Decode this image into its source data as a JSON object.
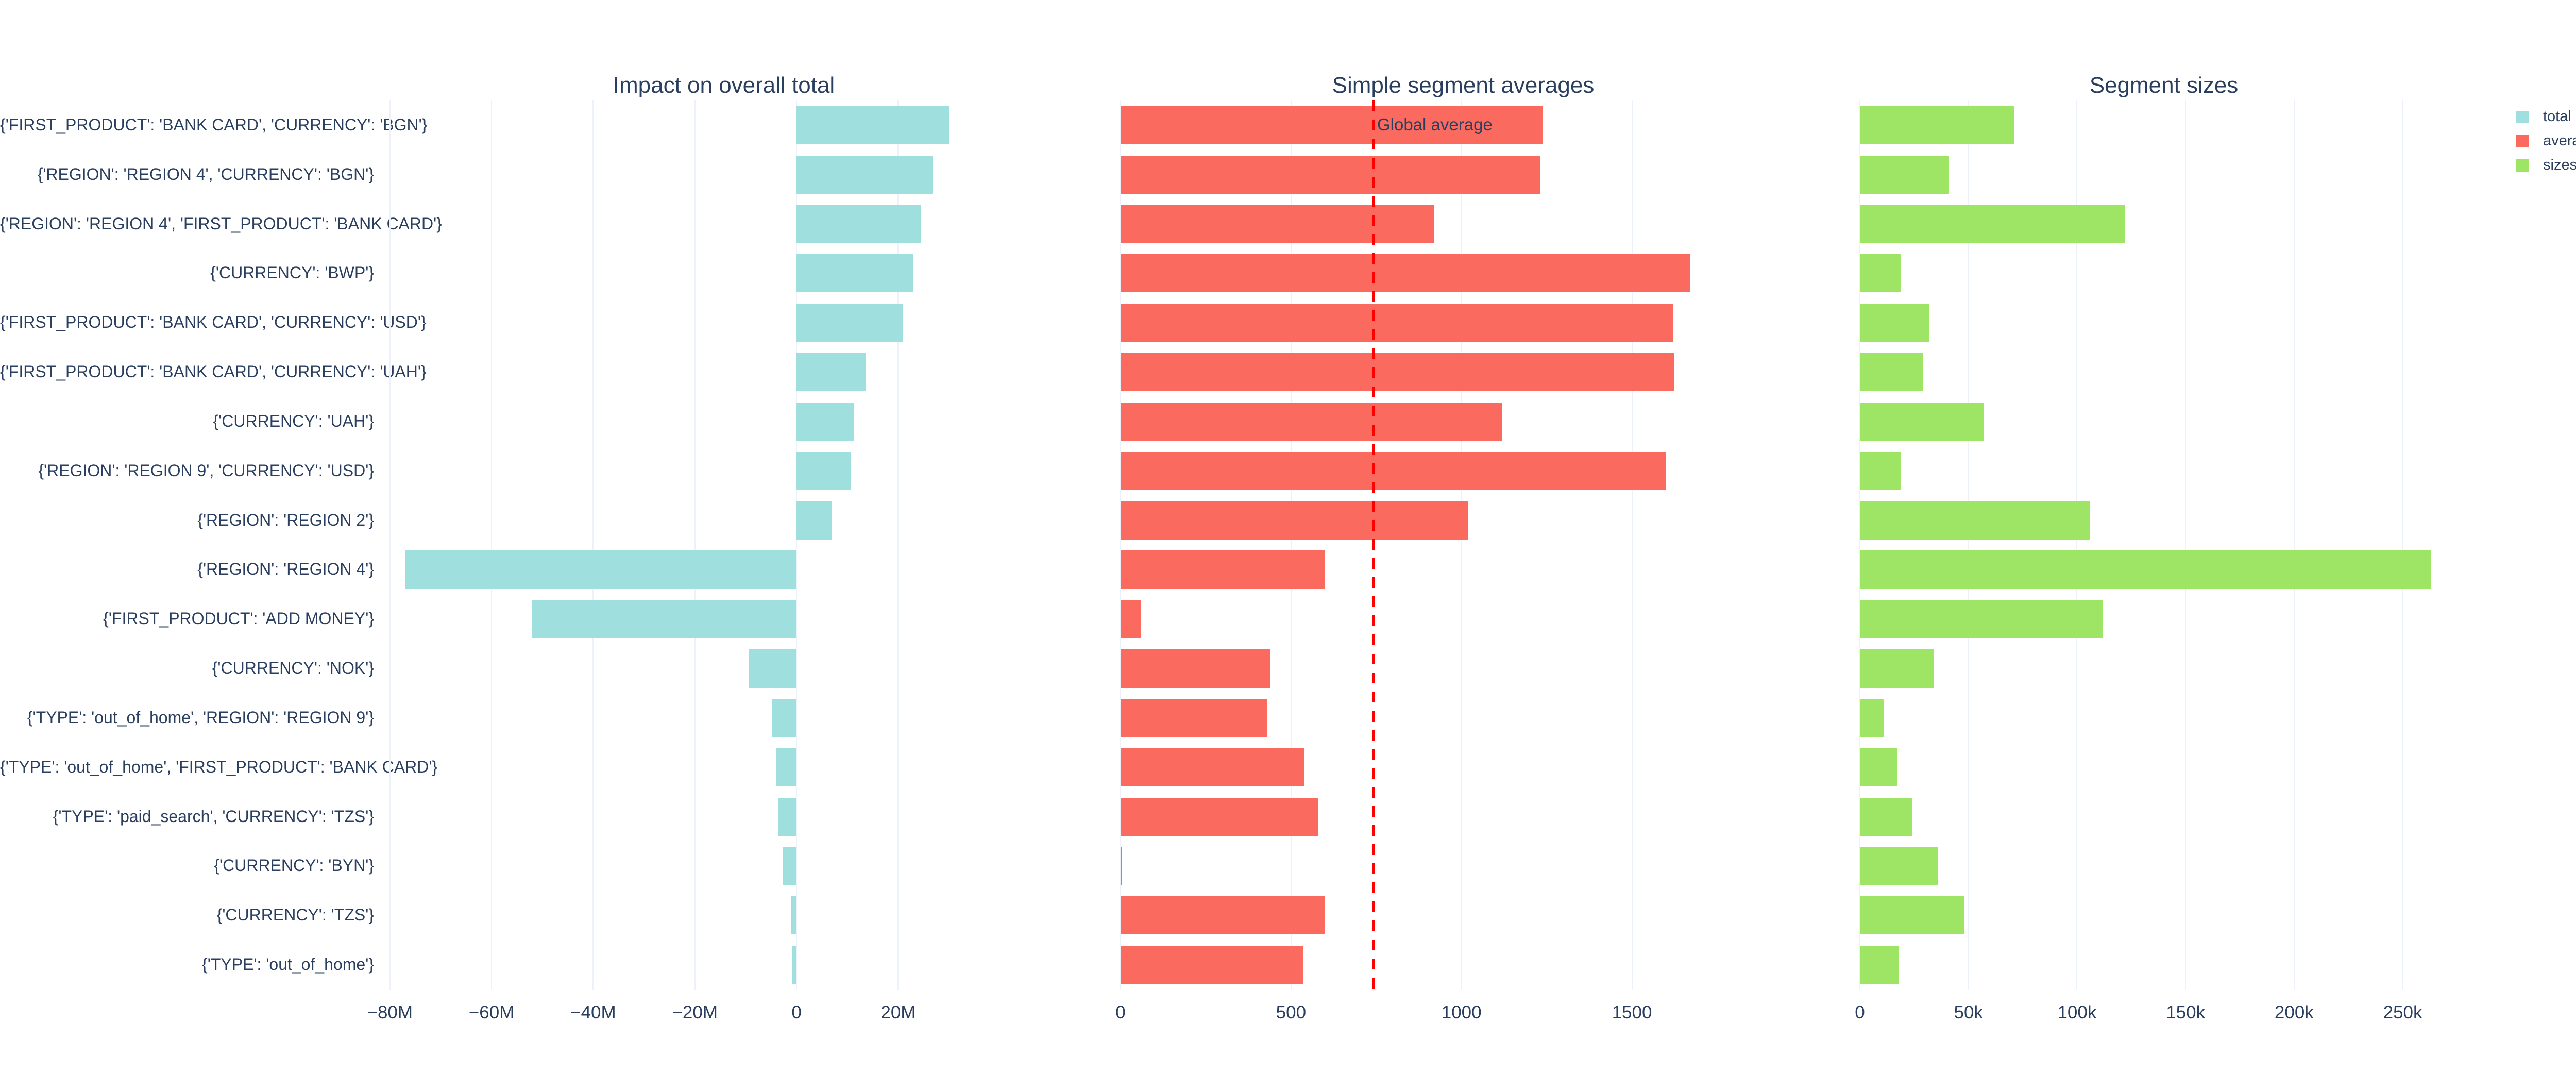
{
  "figure": {
    "background": "#ffffff",
    "text_color": "#2a3f5f",
    "grid_color": "#edf1f9"
  },
  "colors": {
    "total": "#9fe0de",
    "averages": "#fb6a5f",
    "sizes": "#9ee465",
    "reference_line": "#ff0000"
  },
  "legend": {
    "position": "top-right",
    "items": [
      {
        "label": "total",
        "color": "#9fe0de"
      },
      {
        "label": "averages",
        "color": "#fb6a5f"
      },
      {
        "label": "sizes",
        "color": "#9ee465"
      }
    ]
  },
  "categories": [
    "{'FIRST_PRODUCT': 'BANK CARD', 'CURRENCY': 'BGN'}",
    "{'REGION': 'REGION 4', 'CURRENCY': 'BGN'}",
    "{'REGION': 'REGION 4', 'FIRST_PRODUCT': 'BANK CARD'}",
    "{'CURRENCY': 'BWP'}",
    "{'FIRST_PRODUCT': 'BANK CARD', 'CURRENCY': 'USD'}",
    "{'FIRST_PRODUCT': 'BANK CARD', 'CURRENCY': 'UAH'}",
    "{'CURRENCY': 'UAH'}",
    "{'REGION': 'REGION 9', 'CURRENCY': 'USD'}",
    "{'REGION': 'REGION 2'}",
    "{'REGION': 'REGION 4'}",
    "{'FIRST_PRODUCT': 'ADD MONEY'}",
    "{'CURRENCY': 'NOK'}",
    "{'TYPE': 'out_of_home', 'REGION': 'REGION 9'}",
    "{'TYPE': 'out_of_home', 'FIRST_PRODUCT': 'BANK CARD'}",
    "{'TYPE': 'paid_search', 'CURRENCY': 'TZS'}",
    "{'CURRENCY': 'BYN'}",
    "{'CURRENCY': 'TZS'}",
    "{'TYPE': 'out_of_home'}"
  ],
  "chart_data": [
    {
      "type": "bar",
      "orientation": "horizontal",
      "title": "Impact on overall total",
      "series": "total",
      "color_key": "total",
      "grid": true,
      "categories": [
        "{'FIRST_PRODUCT': 'BANK CARD', 'CURRENCY': 'BGN'}",
        "{'REGION': 'REGION 4', 'CURRENCY': 'BGN'}",
        "{'REGION': 'REGION 4', 'FIRST_PRODUCT': 'BANK CARD'}",
        "{'CURRENCY': 'BWP'}",
        "{'FIRST_PRODUCT': 'BANK CARD', 'CURRENCY': 'USD'}",
        "{'FIRST_PRODUCT': 'BANK CARD', 'CURRENCY': 'UAH'}",
        "{'CURRENCY': 'UAH'}",
        "{'REGION': 'REGION 9', 'CURRENCY': 'USD'}",
        "{'REGION': 'REGION 2'}",
        "{'REGION': 'REGION 4'}",
        "{'FIRST_PRODUCT': 'ADD MONEY'}",
        "{'CURRENCY': 'NOK'}",
        "{'TYPE': 'out_of_home', 'REGION': 'REGION 9'}",
        "{'TYPE': 'out_of_home', 'FIRST_PRODUCT': 'BANK CARD'}",
        "{'TYPE': 'paid_search', 'CURRENCY': 'TZS'}",
        "{'CURRENCY': 'BYN'}",
        "{'CURRENCY': 'TZS'}",
        "{'TYPE': 'out_of_home'}"
      ],
      "values": [
        30000000,
        26900000,
        24500000,
        22900000,
        20900000,
        13700000,
        11200000,
        10700000,
        7000000,
        -77000000,
        -52000000,
        -9400000,
        -4800000,
        -4100000,
        -3700000,
        -2700000,
        -1100000,
        -900000
      ],
      "xlim": [
        -81700000,
        53100000
      ],
      "xticks": [
        {
          "value": -80000000,
          "label": "−80M"
        },
        {
          "value": -60000000,
          "label": "−60M"
        },
        {
          "value": -40000000,
          "label": "−40M"
        },
        {
          "value": -20000000,
          "label": "−20M"
        },
        {
          "value": 0,
          "label": "0"
        },
        {
          "value": 20000000,
          "label": "20M"
        }
      ]
    },
    {
      "type": "bar",
      "orientation": "horizontal",
      "title": "Simple segment averages",
      "series": "averages",
      "color_key": "averages",
      "grid": true,
      "categories": [
        "{'FIRST_PRODUCT': 'BANK CARD', 'CURRENCY': 'BGN'}",
        "{'REGION': 'REGION 4', 'CURRENCY': 'BGN'}",
        "{'REGION': 'REGION 4', 'FIRST_PRODUCT': 'BANK CARD'}",
        "{'CURRENCY': 'BWP'}",
        "{'FIRST_PRODUCT': 'BANK CARD', 'CURRENCY': 'USD'}",
        "{'FIRST_PRODUCT': 'BANK CARD', 'CURRENCY': 'UAH'}",
        "{'CURRENCY': 'UAH'}",
        "{'REGION': 'REGION 9', 'CURRENCY': 'USD'}",
        "{'REGION': 'REGION 2'}",
        "{'REGION': 'REGION 4'}",
        "{'FIRST_PRODUCT': 'ADD MONEY'}",
        "{'CURRENCY': 'NOK'}",
        "{'TYPE': 'out_of_home', 'REGION': 'REGION 9'}",
        "{'TYPE': 'out_of_home', 'FIRST_PRODUCT': 'BANK CARD'}",
        "{'TYPE': 'paid_search', 'CURRENCY': 'TZS'}",
        "{'CURRENCY': 'BYN'}",
        "{'CURRENCY': 'TZS'}",
        "{'TYPE': 'out_of_home'}"
      ],
      "values": [
        1240,
        1230,
        920,
        1670,
        1620,
        1625,
        1120,
        1600,
        1020,
        600,
        60,
        440,
        430,
        540,
        580,
        5,
        600,
        535
      ],
      "xlim": [
        0,
        2010
      ],
      "xticks": [
        {
          "value": 0,
          "label": "0"
        },
        {
          "value": 500,
          "label": "500"
        },
        {
          "value": 1000,
          "label": "1000"
        },
        {
          "value": 1500,
          "label": "1500"
        }
      ],
      "reference_line": {
        "value": 742,
        "label": "Global average",
        "color": "#ff0000",
        "style": "dashed"
      }
    },
    {
      "type": "bar",
      "orientation": "horizontal",
      "title": "Segment sizes",
      "series": "sizes",
      "color_key": "sizes",
      "grid": true,
      "categories": [
        "{'FIRST_PRODUCT': 'BANK CARD', 'CURRENCY': 'BGN'}",
        "{'REGION': 'REGION 4', 'CURRENCY': 'BGN'}",
        "{'REGION': 'REGION 4', 'FIRST_PRODUCT': 'BANK CARD'}",
        "{'CURRENCY': 'BWP'}",
        "{'FIRST_PRODUCT': 'BANK CARD', 'CURRENCY': 'USD'}",
        "{'FIRST_PRODUCT': 'BANK CARD', 'CURRENCY': 'UAH'}",
        "{'CURRENCY': 'UAH'}",
        "{'REGION': 'REGION 9', 'CURRENCY': 'USD'}",
        "{'REGION': 'REGION 2'}",
        "{'REGION': 'REGION 4'}",
        "{'FIRST_PRODUCT': 'ADD MONEY'}",
        "{'CURRENCY': 'NOK'}",
        "{'TYPE': 'out_of_home', 'REGION': 'REGION 9'}",
        "{'TYPE': 'out_of_home', 'FIRST_PRODUCT': 'BANK CARD'}",
        "{'TYPE': 'paid_search', 'CURRENCY': 'TZS'}",
        "{'CURRENCY': 'BYN'}",
        "{'CURRENCY': 'TZS'}",
        "{'TYPE': 'out_of_home'}"
      ],
      "values": [
        71000,
        41000,
        122000,
        19000,
        32000,
        29000,
        57000,
        19000,
        106000,
        263000,
        112000,
        34000,
        11000,
        17000,
        24000,
        36000,
        48000,
        18000
      ],
      "xlim": [
        0,
        280000
      ],
      "xticks": [
        {
          "value": 0,
          "label": "0"
        },
        {
          "value": 50000,
          "label": "50k"
        },
        {
          "value": 100000,
          "label": "100k"
        },
        {
          "value": 150000,
          "label": "150k"
        },
        {
          "value": 200000,
          "label": "200k"
        },
        {
          "value": 250000,
          "label": "250k"
        }
      ]
    }
  ]
}
